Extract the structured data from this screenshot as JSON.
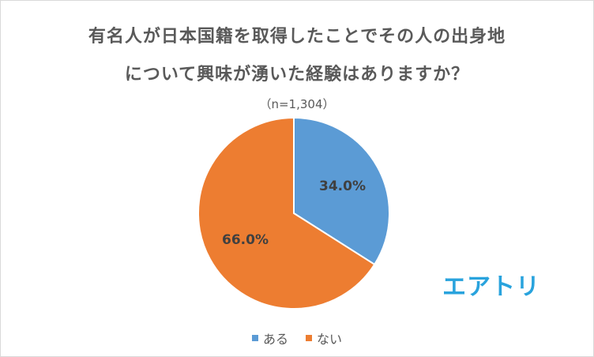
{
  "chart_data": {
    "type": "pie",
    "title_line1": "有名人が日本国籍を取得したことでその人の出身地",
    "title_line2": "について興味が湧いた経験はありますか？",
    "subtitle": "（n=1,304）",
    "slices": [
      {
        "label": "ある",
        "value": 34.0,
        "display": "34.0%",
        "color": "#5b9bd5"
      },
      {
        "label": "ない",
        "value": 66.0,
        "display": "66.0%",
        "color": "#ed7d31"
      }
    ],
    "legend_position": "bottom"
  },
  "logo_text": "エアトリ",
  "logo_color": "#29a3dd"
}
